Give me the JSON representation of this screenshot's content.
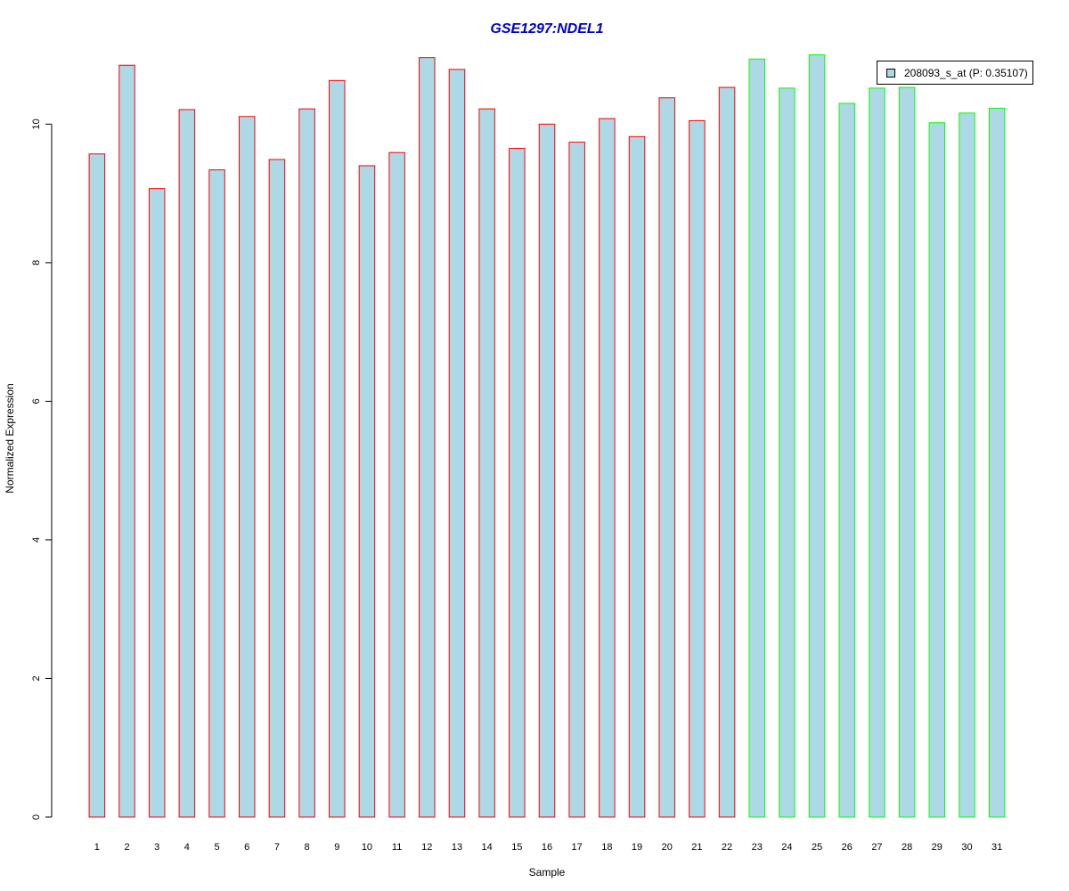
{
  "chart_data": {
    "type": "bar",
    "title": "GSE1297:NDEL1",
    "xlabel": "Sample",
    "ylabel": "Normalized Expression",
    "ylim": [
      0,
      11.2
    ],
    "yticks": [
      0,
      2,
      4,
      6,
      8,
      10
    ],
    "grid": false,
    "legend_position": "top-right",
    "categories": [
      "1",
      "2",
      "3",
      "4",
      "5",
      "6",
      "7",
      "8",
      "9",
      "10",
      "11",
      "12",
      "13",
      "14",
      "15",
      "16",
      "17",
      "18",
      "19",
      "20",
      "21",
      "22",
      "23",
      "24",
      "25",
      "26",
      "27",
      "28",
      "29",
      "30",
      "31"
    ],
    "series": [
      {
        "name": "208093_s_at (P: 0.35107)",
        "values": [
          9.57,
          10.85,
          9.07,
          10.21,
          9.34,
          10.11,
          9.49,
          10.22,
          10.63,
          9.4,
          9.59,
          10.96,
          10.79,
          10.22,
          9.65,
          10.0,
          9.74,
          10.08,
          9.82,
          10.38,
          10.05,
          10.53,
          10.94,
          10.52,
          11.0,
          10.3,
          10.52,
          10.53,
          10.02,
          10.16,
          10.23
        ]
      }
    ],
    "groups": [
      1,
      1,
      1,
      1,
      1,
      1,
      1,
      1,
      1,
      1,
      1,
      1,
      1,
      1,
      1,
      1,
      1,
      1,
      1,
      1,
      1,
      1,
      2,
      2,
      2,
      2,
      2,
      2,
      2,
      2,
      2
    ]
  },
  "colors": {
    "bar_fill": "#add8e6",
    "group1_border": "#ff0000",
    "group2_border": "#00ff00",
    "title": "#0000cd",
    "axis": "#000000"
  }
}
